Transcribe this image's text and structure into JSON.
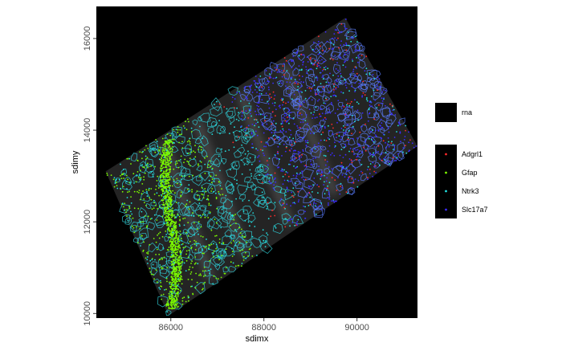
{
  "chart_data": {
    "type": "scatter",
    "xlabel": "sdimx",
    "ylabel": "sdimy",
    "xlim": [
      84400,
      91300
    ],
    "ylim": [
      9900,
      16700
    ],
    "x_ticks": [
      "86000",
      "88000",
      "90000"
    ],
    "x_tick_values": [
      86000,
      88000,
      90000
    ],
    "y_ticks": [
      "10000",
      "12000",
      "14000",
      "16000"
    ],
    "y_tick_values": [
      10000,
      12000,
      14000,
      16000
    ],
    "grid": false,
    "background": "black",
    "image_layer": {
      "name": "rna",
      "tissue_corners": [
        [
          84600,
          13100
        ],
        [
          85950,
          9950
        ],
        [
          91300,
          13650
        ],
        [
          89750,
          16450
        ]
      ]
    },
    "series": [
      {
        "name": "Adgrl1",
        "color": "#ff2a2a"
      },
      {
        "name": "Gfap",
        "color": "#7cfc00"
      },
      {
        "name": "Ntrk3",
        "color": "#20e0e0"
      },
      {
        "name": "Slc17a7",
        "color": "#3b2bff"
      }
    ],
    "legend_position": "right"
  }
}
